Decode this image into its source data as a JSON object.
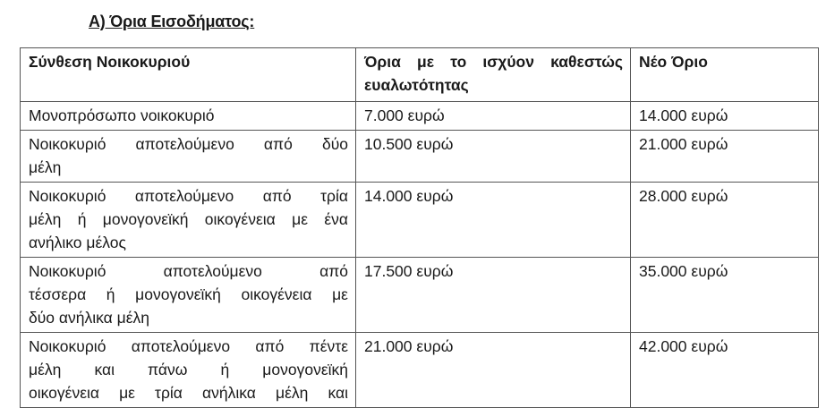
{
  "title": "Α) Όρια Εισοδήματος:",
  "table": {
    "headers": [
      [
        "Σύνθεση Νοικοκυριού"
      ],
      [
        "Όρια με το ισχύον καθεστώς",
        "ευαλωτότητας"
      ],
      [
        "Νέο Όριο"
      ]
    ],
    "rows": [
      {
        "composition": [
          "Μονοπρόσωπο νοικοκυριό"
        ],
        "current": "7.000 ευρώ",
        "new": "14.000 ευρώ"
      },
      {
        "composition": [
          "Νοικοκυριό αποτελούμενο από δύο",
          "μέλη"
        ],
        "current": "10.500 ευρώ",
        "new": "21.000 ευρώ"
      },
      {
        "composition": [
          "Νοικοκυριό αποτελούμενο από τρία",
          "μέλη ή μονογονεϊκή οικογένεια με ένα",
          "ανήλικο μέλος"
        ],
        "current": "14.000 ευρώ",
        "new": "28.000 ευρώ"
      },
      {
        "composition": [
          "Νοικοκυριό αποτελούμενο από",
          "τέσσερα ή μονογονεϊκή οικογένεια με",
          "δύο ανήλικα μέλη"
        ],
        "current": "17.500 ευρώ",
        "new": "35.000 ευρώ"
      },
      {
        "composition": [
          "Νοικοκυριό αποτελούμενο από πέντε",
          "μέλη και πάνω ή μονογονεϊκή",
          "οικογένεια με τρία ανήλικα μέλη και"
        ],
        "current": "21.000 ευρώ",
        "new": "42.000 ευρώ"
      }
    ]
  }
}
